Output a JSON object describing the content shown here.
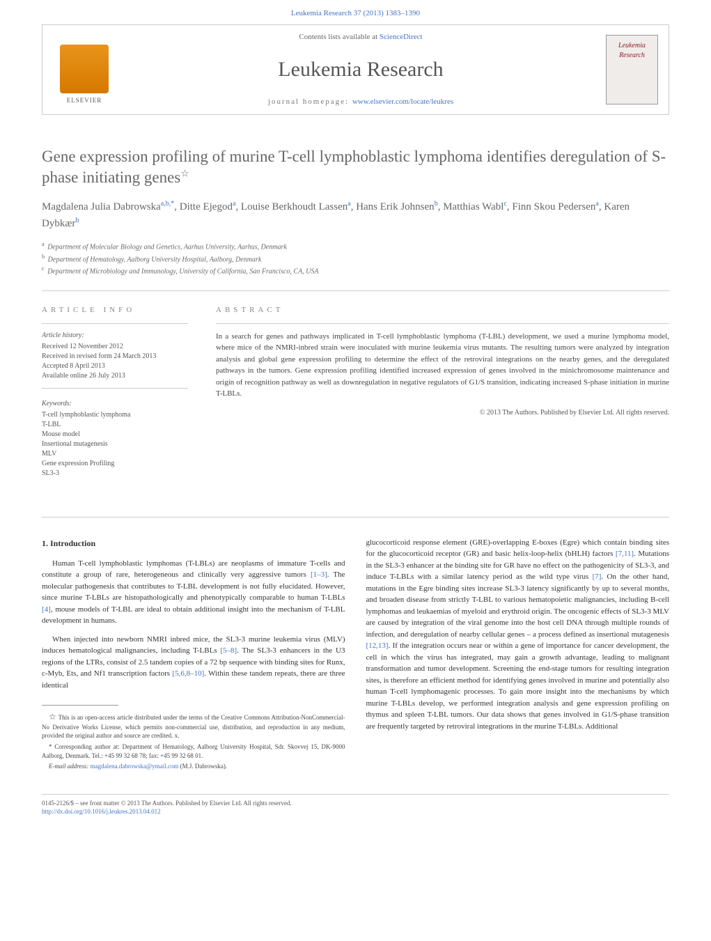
{
  "citation": "Leukemia Research 37 (2013) 1383–1390",
  "header": {
    "contents_prefix": "Contents lists available at ",
    "contents_link": "ScienceDirect",
    "journal_name": "Leukemia Research",
    "homepage_label": "journal homepage: ",
    "homepage_url": "www.elsevier.com/locate/leukres",
    "elsevier_label": "ELSEVIER",
    "cover_title": "Leukemia Research"
  },
  "title": "Gene expression profiling of murine T-cell lymphoblastic lymphoma identifies deregulation of S-phase initiating genes",
  "title_star": "☆",
  "authors_html": "Magdalena Julia Dabrowska<sup>a,b,*</sup>, Ditte Ejegod<sup>a</sup>, Louise Berkhoudt Lassen<sup>a</sup>, Hans Erik Johnsen<sup>b</sup>, Matthias Wabl<sup>c</sup>, Finn Skou Pedersen<sup>a</sup>, Karen Dybkær<sup>b</sup>",
  "affiliations": [
    {
      "sup": "a",
      "text": "Department of Molecular Biology and Genetics, Aarhus University, Aarhus, Denmark"
    },
    {
      "sup": "b",
      "text": "Department of Hematology, Aalborg University Hospital, Aalborg, Denmark"
    },
    {
      "sup": "c",
      "text": "Department of Microbiology and Immunology, University of California, San Francisco, CA, USA"
    }
  ],
  "article_info": {
    "heading": "article info",
    "history_label": "Article history:",
    "history": [
      "Received 12 November 2012",
      "Received in revised form 24 March 2013",
      "Accepted 8 April 2013",
      "Available online 26 July 2013"
    ],
    "keywords_label": "Keywords:",
    "keywords": [
      "T-cell lymphoblastic lymphoma",
      "T-LBL",
      "Mouse model",
      "Insertional mutagenesis",
      "MLV",
      "Gene expression Profiling",
      "SL3-3"
    ]
  },
  "abstract": {
    "heading": "abstract",
    "text": "In a search for genes and pathways implicated in T-cell lymphoblastic lymphoma (T-LBL) development, we used a murine lymphoma model, where mice of the NMRI-inbred strain were inoculated with murine leukemia virus mutants. The resulting tumors were analyzed by integration analysis and global gene expression profiling to determine the effect of the retroviral integrations on the nearby genes, and the deregulated pathways in the tumors. Gene expression profiling identified increased expression of genes involved in the minichromosome maintenance and origin of recognition pathway as well as downregulation in negative regulators of G1/S transition, indicating increased S-phase initiation in murine T-LBLs.",
    "copyright": "© 2013 The Authors. Published by Elsevier Ltd. All rights reserved."
  },
  "body": {
    "section1_heading": "1. Introduction",
    "para1": "Human T-cell lymphoblastic lymphomas (T-LBLs) are neoplasms of immature T-cells and constitute a group of rare, heterogeneous and clinically very aggressive tumors [1–3]. The molecular pathogenesis that contributes to T-LBL development is not fully elucidated. However, since murine T-LBLs are histopathologically and phenotypically comparable to human T-LBLs [4], mouse models of T-LBL are ideal to obtain additional insight into the mechanism of T-LBL development in humans.",
    "para2": "When injected into newborn NMRI inbred mice, the SL3-3 murine leukemia virus (MLV) induces hematological malignancies, including T-LBLs [5–8]. The SL3-3 enhancers in the U3 regions of the LTRs, consist of 2.5 tandem copies of a 72 bp sequence with binding sites for Runx, c-Myb, Ets, and Nf1 transcription factors [5,6,8–10]. Within these tandem repeats, there are three identical",
    "para3": "glucocorticoid response element (GRE)-overlapping E-boxes (Egre) which contain binding sites for the glucocorticoid receptor (GR) and basic helix-loop-helix (bHLH) factors [7,11]. Mutations in the SL3-3 enhancer at the binding site for GR have no effect on the pathogenicity of SL3-3, and induce T-LBLs with a similar latency period as the wild type virus [7]. On the other hand, mutations in the Egre binding sites increase SL3-3 latency significantly by up to several months, and broaden disease from strictly T-LBL to various hematopoietic malignancies, including B-cell lymphomas and leukaemias of myeloid and erythroid origin. The oncogenic effects of SL3-3 MLV are caused by integration of the viral genome into the host cell DNA through multiple rounds of infection, and deregulation of nearby cellular genes – a process defined as insertional mutagenesis [12,13]. If the integration occurs near or within a gene of importance for cancer development, the cell in which the virus has integrated, may gain a growth advantage, leading to malignant transformation and tumor development. Screening the end-stage tumors for resulting integration sites, is therefore an efficient method for identifying genes involved in murine and potentially also human T-cell lymphomagenic processes. To gain more insight into the mechanisms by which murine T-LBLs develop, we performed integration analysis and gene expression profiling on thymus and spleen T-LBL tumors. Our data shows that genes involved in G1/S-phase transition are frequently targeted by retroviral integrations in the murine T-LBLs. Additional",
    "refs": {
      "r1_3": "[1–3]",
      "r4": "[4]",
      "r5_8": "[5–8]",
      "r5_6_8_10": "[5,6,8–10]",
      "r7_11": "[7,11]",
      "r7": "[7]",
      "r12_13": "[12,13]"
    }
  },
  "footnotes": {
    "oa_star": "☆",
    "oa_text": "This is an open-access article distributed under the terms of the Creative Commons Attribution-NonCommercial-No Derivative Works License, which permits non-commercial use, distribution, and reproduction in any medium, provided the original author and source are credited. x.",
    "corr_star": "*",
    "corr_text": "Corresponding author at: Department of Hematology, Aalborg University Hospital, Sdr. Skovvej 15, DK-9000 Aalborg, Denmark. Tel.: +45 99 32 68 78; fax: +45 99 32 68 01.",
    "email_label": "E-mail address:",
    "email": "magdalena.dabrowska@ymail.com",
    "email_person": "(M.J. Dabrowska)."
  },
  "bottom": {
    "line1": "0145-2126/$ – see front matter © 2013 The Authors. Published by Elsevier Ltd. All rights reserved.",
    "doi": "http://dx.doi.org/10.1016/j.leukres.2013.04.012"
  },
  "colors": {
    "link": "#4472c4",
    "text_muted": "#666666",
    "border": "#cccccc",
    "elsevier_orange": "#e8941a"
  }
}
